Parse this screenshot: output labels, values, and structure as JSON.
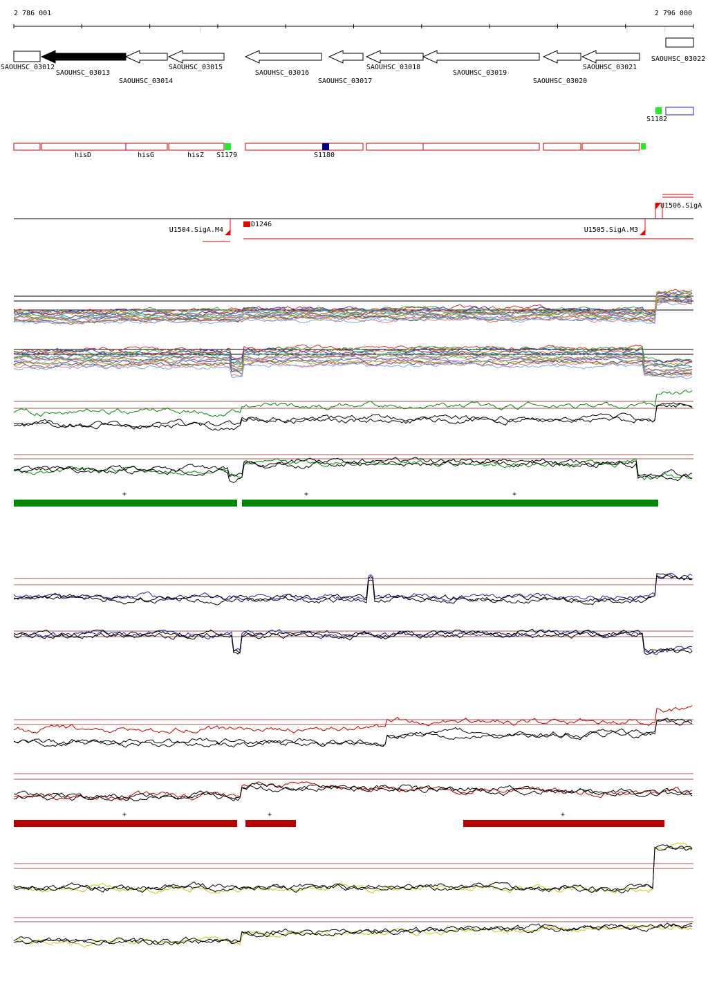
{
  "ruler": {
    "start": "2 786 001",
    "end": "2 796 000"
  },
  "genes": [
    "SAOUHSC_03012",
    "SAOUHSC_03013",
    "SAOUHSC_03014",
    "SAOUHSC_03015",
    "SAOUHSC_03016",
    "SAOUHSC_03017",
    "SAOUHSC_03018",
    "SAOUHSC_03019",
    "SAOUHSC_03020",
    "SAOUHSC_03021",
    "SAOUHSC_03022"
  ],
  "operon_genes": [
    "hisD",
    "hisG",
    "hisZ"
  ],
  "features": [
    "S1179",
    "S1180",
    "S1182"
  ],
  "tss": [
    "U1504.SigA.M4",
    "D1246",
    "U1505.SigA.M3",
    "U1506.SigA"
  ],
  "green_strand": [
    "+",
    "+",
    "+"
  ],
  "red_strand": [
    "+",
    "+",
    "+"
  ]
}
